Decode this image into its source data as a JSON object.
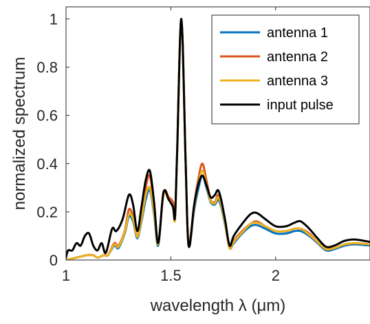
{
  "chart_data": {
    "type": "line",
    "xlabel": "wavelength λ (μm)",
    "ylabel": "normalized spectrum",
    "xlim": [
      1.0,
      2.45
    ],
    "ylim": [
      0,
      1.05
    ],
    "xticks": [
      1,
      1.5,
      2
    ],
    "xtick_labels": [
      "1",
      "1.5",
      "2"
    ],
    "yticks": [
      0,
      0.2,
      0.4,
      0.6,
      0.8,
      1
    ],
    "ytick_labels": [
      "0",
      "0.2",
      "0.4",
      "0.6",
      "0.8",
      "1"
    ],
    "grid": false,
    "legend_position": "top-right",
    "series": [
      {
        "name": "antenna 1",
        "color": "#0072BD",
        "points": [
          [
            1.0,
            0.0
          ],
          [
            1.05,
            0.01
          ],
          [
            1.1,
            0.02
          ],
          [
            1.13,
            0.02
          ],
          [
            1.15,
            0.01
          ],
          [
            1.18,
            0.02
          ],
          [
            1.2,
            0.02
          ],
          [
            1.23,
            0.06
          ],
          [
            1.25,
            0.05
          ],
          [
            1.28,
            0.11
          ],
          [
            1.3,
            0.18
          ],
          [
            1.32,
            0.16
          ],
          [
            1.34,
            0.09
          ],
          [
            1.36,
            0.16
          ],
          [
            1.38,
            0.25
          ],
          [
            1.4,
            0.29
          ],
          [
            1.42,
            0.19
          ],
          [
            1.44,
            0.06
          ],
          [
            1.465,
            0.28
          ],
          [
            1.49,
            0.25
          ],
          [
            1.51,
            0.22
          ],
          [
            1.52,
            0.18
          ],
          [
            1.53,
            0.45
          ],
          [
            1.55,
            1.0
          ],
          [
            1.57,
            0.42
          ],
          [
            1.58,
            0.12
          ],
          [
            1.59,
            0.06
          ],
          [
            1.61,
            0.2
          ],
          [
            1.63,
            0.29
          ],
          [
            1.65,
            0.35
          ],
          [
            1.67,
            0.3
          ],
          [
            1.69,
            0.24
          ],
          [
            1.71,
            0.23
          ],
          [
            1.725,
            0.25
          ],
          [
            1.74,
            0.22
          ],
          [
            1.76,
            0.14
          ],
          [
            1.78,
            0.05
          ],
          [
            1.8,
            0.07
          ],
          [
            1.84,
            0.11
          ],
          [
            1.88,
            0.14
          ],
          [
            1.91,
            0.145
          ],
          [
            1.95,
            0.13
          ],
          [
            2.0,
            0.11
          ],
          [
            2.05,
            0.11
          ],
          [
            2.09,
            0.12
          ],
          [
            2.12,
            0.12
          ],
          [
            2.16,
            0.1
          ],
          [
            2.2,
            0.07
          ],
          [
            2.24,
            0.04
          ],
          [
            2.28,
            0.045
          ],
          [
            2.33,
            0.06
          ],
          [
            2.38,
            0.065
          ],
          [
            2.45,
            0.06
          ]
        ]
      },
      {
        "name": "antenna 2",
        "color": "#D95319",
        "points": [
          [
            1.0,
            0.0
          ],
          [
            1.05,
            0.01
          ],
          [
            1.1,
            0.02
          ],
          [
            1.13,
            0.02
          ],
          [
            1.15,
            0.01
          ],
          [
            1.18,
            0.02
          ],
          [
            1.2,
            0.02
          ],
          [
            1.23,
            0.07
          ],
          [
            1.25,
            0.06
          ],
          [
            1.28,
            0.12
          ],
          [
            1.3,
            0.21
          ],
          [
            1.32,
            0.18
          ],
          [
            1.34,
            0.1
          ],
          [
            1.36,
            0.18
          ],
          [
            1.38,
            0.3
          ],
          [
            1.4,
            0.35
          ],
          [
            1.42,
            0.22
          ],
          [
            1.44,
            0.07
          ],
          [
            1.465,
            0.28
          ],
          [
            1.49,
            0.26
          ],
          [
            1.51,
            0.24
          ],
          [
            1.52,
            0.18
          ],
          [
            1.53,
            0.45
          ],
          [
            1.55,
            1.0
          ],
          [
            1.57,
            0.42
          ],
          [
            1.58,
            0.12
          ],
          [
            1.59,
            0.07
          ],
          [
            1.61,
            0.22
          ],
          [
            1.63,
            0.33
          ],
          [
            1.65,
            0.4
          ],
          [
            1.67,
            0.33
          ],
          [
            1.69,
            0.25
          ],
          [
            1.71,
            0.24
          ],
          [
            1.725,
            0.27
          ],
          [
            1.74,
            0.24
          ],
          [
            1.76,
            0.15
          ],
          [
            1.78,
            0.05
          ],
          [
            1.8,
            0.08
          ],
          [
            1.84,
            0.12
          ],
          [
            1.88,
            0.15
          ],
          [
            1.91,
            0.16
          ],
          [
            1.95,
            0.14
          ],
          [
            2.0,
            0.12
          ],
          [
            2.05,
            0.12
          ],
          [
            2.09,
            0.13
          ],
          [
            2.12,
            0.13
          ],
          [
            2.16,
            0.11
          ],
          [
            2.2,
            0.075
          ],
          [
            2.24,
            0.045
          ],
          [
            2.28,
            0.05
          ],
          [
            2.33,
            0.065
          ],
          [
            2.38,
            0.07
          ],
          [
            2.45,
            0.065
          ]
        ]
      },
      {
        "name": "antenna 3",
        "color": "#EDB120",
        "points": [
          [
            1.0,
            0.0
          ],
          [
            1.05,
            0.01
          ],
          [
            1.1,
            0.02
          ],
          [
            1.13,
            0.02
          ],
          [
            1.15,
            0.01
          ],
          [
            1.18,
            0.02
          ],
          [
            1.2,
            0.02
          ],
          [
            1.23,
            0.065
          ],
          [
            1.25,
            0.055
          ],
          [
            1.28,
            0.115
          ],
          [
            1.3,
            0.19
          ],
          [
            1.32,
            0.17
          ],
          [
            1.34,
            0.095
          ],
          [
            1.36,
            0.17
          ],
          [
            1.38,
            0.27
          ],
          [
            1.4,
            0.3
          ],
          [
            1.42,
            0.2
          ],
          [
            1.44,
            0.065
          ],
          [
            1.465,
            0.27
          ],
          [
            1.49,
            0.25
          ],
          [
            1.51,
            0.22
          ],
          [
            1.52,
            0.17
          ],
          [
            1.53,
            0.45
          ],
          [
            1.55,
            1.0
          ],
          [
            1.57,
            0.42
          ],
          [
            1.58,
            0.12
          ],
          [
            1.59,
            0.065
          ],
          [
            1.61,
            0.21
          ],
          [
            1.63,
            0.31
          ],
          [
            1.65,
            0.37
          ],
          [
            1.67,
            0.31
          ],
          [
            1.69,
            0.245
          ],
          [
            1.71,
            0.235
          ],
          [
            1.725,
            0.26
          ],
          [
            1.74,
            0.23
          ],
          [
            1.76,
            0.145
          ],
          [
            1.78,
            0.05
          ],
          [
            1.8,
            0.075
          ],
          [
            1.84,
            0.115
          ],
          [
            1.88,
            0.15
          ],
          [
            1.91,
            0.155
          ],
          [
            1.95,
            0.14
          ],
          [
            2.0,
            0.12
          ],
          [
            2.05,
            0.12
          ],
          [
            2.09,
            0.13
          ],
          [
            2.12,
            0.13
          ],
          [
            2.16,
            0.105
          ],
          [
            2.2,
            0.075
          ],
          [
            2.24,
            0.045
          ],
          [
            2.28,
            0.05
          ],
          [
            2.33,
            0.065
          ],
          [
            2.38,
            0.07
          ],
          [
            2.45,
            0.065
          ]
        ]
      },
      {
        "name": "input pulse",
        "color": "#000000",
        "points": [
          [
            1.0,
            0.01
          ],
          [
            1.01,
            0.04
          ],
          [
            1.03,
            0.04
          ],
          [
            1.05,
            0.07
          ],
          [
            1.07,
            0.06
          ],
          [
            1.09,
            0.1
          ],
          [
            1.11,
            0.11
          ],
          [
            1.13,
            0.06
          ],
          [
            1.15,
            0.04
          ],
          [
            1.17,
            0.07
          ],
          [
            1.19,
            0.03
          ],
          [
            1.22,
            0.13
          ],
          [
            1.24,
            0.12
          ],
          [
            1.27,
            0.17
          ],
          [
            1.3,
            0.27
          ],
          [
            1.32,
            0.23
          ],
          [
            1.34,
            0.12
          ],
          [
            1.36,
            0.22
          ],
          [
            1.38,
            0.33
          ],
          [
            1.4,
            0.37
          ],
          [
            1.42,
            0.24
          ],
          [
            1.44,
            0.07
          ],
          [
            1.465,
            0.28
          ],
          [
            1.49,
            0.25
          ],
          [
            1.51,
            0.22
          ],
          [
            1.52,
            0.18
          ],
          [
            1.53,
            0.45
          ],
          [
            1.55,
            1.0
          ],
          [
            1.57,
            0.42
          ],
          [
            1.58,
            0.12
          ],
          [
            1.59,
            0.06
          ],
          [
            1.61,
            0.22
          ],
          [
            1.63,
            0.31
          ],
          [
            1.65,
            0.35
          ],
          [
            1.67,
            0.31
          ],
          [
            1.69,
            0.26
          ],
          [
            1.71,
            0.27
          ],
          [
            1.725,
            0.29
          ],
          [
            1.74,
            0.25
          ],
          [
            1.76,
            0.16
          ],
          [
            1.78,
            0.06
          ],
          [
            1.8,
            0.1
          ],
          [
            1.84,
            0.15
          ],
          [
            1.88,
            0.19
          ],
          [
            1.91,
            0.195
          ],
          [
            1.95,
            0.17
          ],
          [
            2.0,
            0.14
          ],
          [
            2.05,
            0.14
          ],
          [
            2.09,
            0.155
          ],
          [
            2.12,
            0.16
          ],
          [
            2.16,
            0.13
          ],
          [
            2.2,
            0.09
          ],
          [
            2.24,
            0.055
          ],
          [
            2.28,
            0.06
          ],
          [
            2.33,
            0.08
          ],
          [
            2.38,
            0.085
          ],
          [
            2.45,
            0.075
          ]
        ]
      }
    ]
  }
}
